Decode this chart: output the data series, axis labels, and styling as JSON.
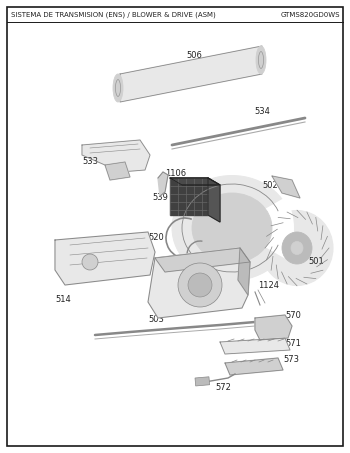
{
  "title_left": "SISTEMA DE TRANSMISION (ENS) / BLOWER & DRIVE (ASM)",
  "title_right": "GTMS820GD0WS",
  "bg_color": "#ffffff",
  "border_color": "#1a1a1a",
  "line_color": "#888888",
  "line_color2": "#aaaaaa",
  "dark_color": "#222222",
  "gray1": "#e8e8e8",
  "gray2": "#d0d0d0",
  "gray3": "#bbbbbb",
  "gray4": "#c8c8c8",
  "dark_part": "#3a3a3a",
  "title_fontsize": 5.0,
  "label_fontsize": 6.0,
  "figsize": [
    3.5,
    4.53
  ],
  "dpi": 100
}
